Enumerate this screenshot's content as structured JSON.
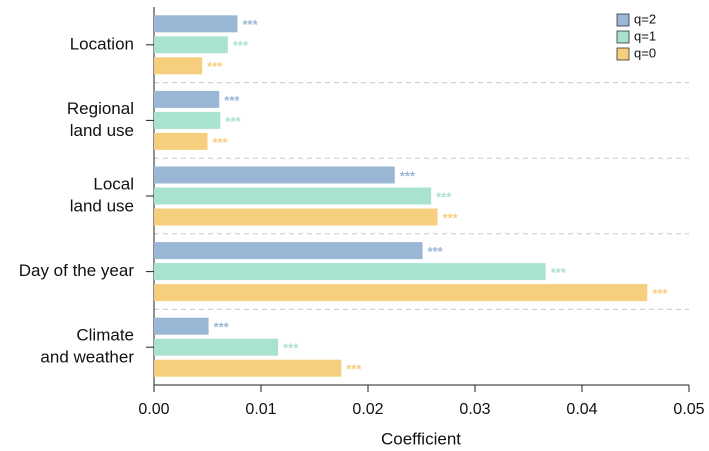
{
  "chart_data": {
    "type": "bar",
    "orientation": "horizontal",
    "xlabel": "Coefficient",
    "categories": [
      [
        "Location"
      ],
      [
        "Regional",
        "land use"
      ],
      [
        "Local",
        "land use"
      ],
      [
        "Day of the year"
      ],
      [
        "Climate",
        "and weather"
      ]
    ],
    "series": [
      {
        "name": "q=2",
        "color": "#9bb7d6",
        "values": [
          0.0078,
          0.0061,
          0.0225,
          0.0251,
          0.0051
        ],
        "annotations": [
          "***",
          "***",
          "***",
          "***",
          "***"
        ]
      },
      {
        "name": "q=1",
        "color": "#a9e2cf",
        "values": [
          0.0069,
          0.0062,
          0.0259,
          0.0366,
          0.0116
        ],
        "annotations": [
          "***",
          "***",
          "***",
          "***",
          "***"
        ]
      },
      {
        "name": "q=0",
        "color": "#f5cf7d",
        "values": [
          0.0045,
          0.005,
          0.0265,
          0.0461,
          0.0175
        ],
        "annotations": [
          "***",
          "***",
          "***",
          "***",
          "***"
        ]
      }
    ],
    "xlim": [
      0,
      0.05
    ],
    "xticks": [
      {
        "value": 0,
        "label": "0.00"
      },
      {
        "value": 0.01,
        "label": "0.01"
      },
      {
        "value": 0.02,
        "label": "0.02"
      },
      {
        "value": 0.03,
        "label": "0.03"
      },
      {
        "value": 0.04,
        "label": "0.04"
      },
      {
        "value": 0.05,
        "label": "0.05"
      }
    ],
    "legend": "top-right"
  }
}
